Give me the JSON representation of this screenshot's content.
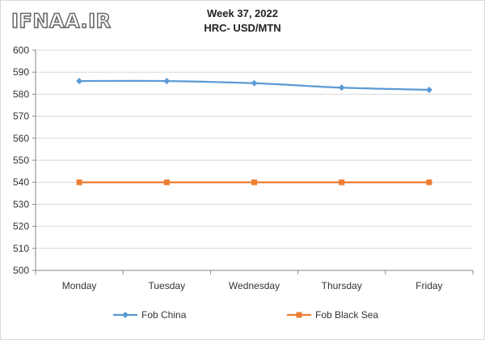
{
  "watermark": "IFNAA.IR",
  "chart_data": {
    "type": "line",
    "title": "Week 37, 2022",
    "subtitle": "HRC- USD/MTN",
    "categories": [
      "Monday",
      "Tuesday",
      "Wednesday",
      "Thursday",
      "Friday"
    ],
    "ylim": [
      500,
      600
    ],
    "yticks": [
      500,
      510,
      520,
      530,
      540,
      550,
      560,
      570,
      580,
      590,
      600
    ],
    "grid": true,
    "legend_position": "bottom",
    "series": [
      {
        "name": "Fob China",
        "color": "#5b9bd5",
        "marker": "diamond",
        "values": [
          586,
          586,
          585,
          583,
          582
        ]
      },
      {
        "name": "Fob Black Sea",
        "color": "#ed7d31",
        "marker": "square",
        "values": [
          540,
          540,
          540,
          540,
          540
        ]
      }
    ]
  }
}
